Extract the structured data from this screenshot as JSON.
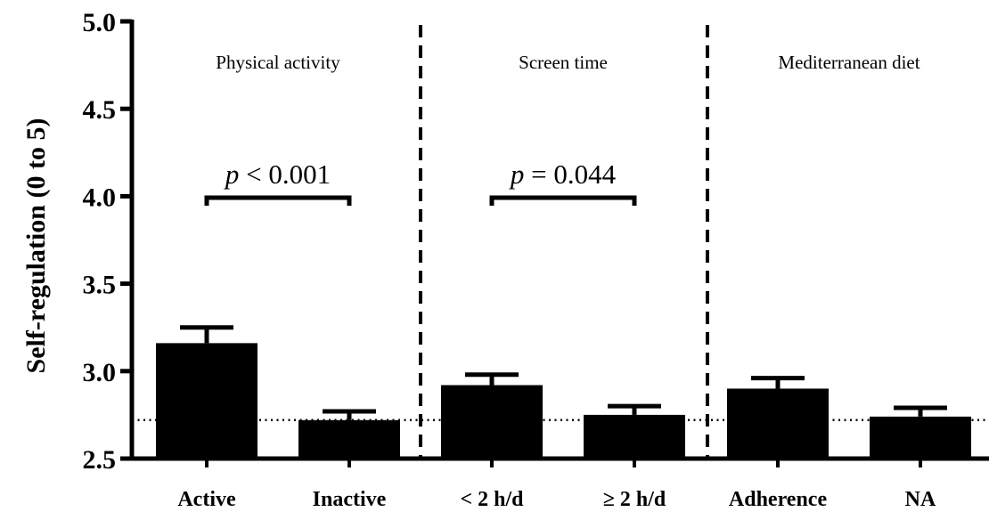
{
  "chart_data": {
    "type": "bar",
    "title": "",
    "xlabel": "",
    "ylabel": "Self-regulation (0 to 5)",
    "ylim": [
      2.5,
      5.0
    ],
    "yticks": [
      "2.5",
      "3.0",
      "3.5",
      "4.0",
      "4.5",
      "5.0"
    ],
    "categories": [
      "Active",
      "Inactive",
      "< 2 h/d",
      "≥ 2 h/d",
      "Adherence",
      "NA"
    ],
    "values": [
      3.16,
      2.72,
      2.92,
      2.75,
      2.9,
      2.74
    ],
    "error_upper": [
      3.25,
      2.77,
      2.98,
      2.8,
      2.96,
      2.79
    ],
    "reference_line": 2.72,
    "groups": [
      {
        "title": "Physical activity",
        "categories": [
          0,
          1
        ],
        "p_prefix": "p",
        "p_text": " < 0.001"
      },
      {
        "title": "Screen time",
        "categories": [
          2,
          3
        ],
        "p_prefix": "p",
        "p_text": " = 0.044"
      },
      {
        "title": "Mediterranean diet",
        "categories": [
          4,
          5
        ]
      }
    ],
    "bar_color": "#000000",
    "grid": false,
    "legend": "none"
  }
}
